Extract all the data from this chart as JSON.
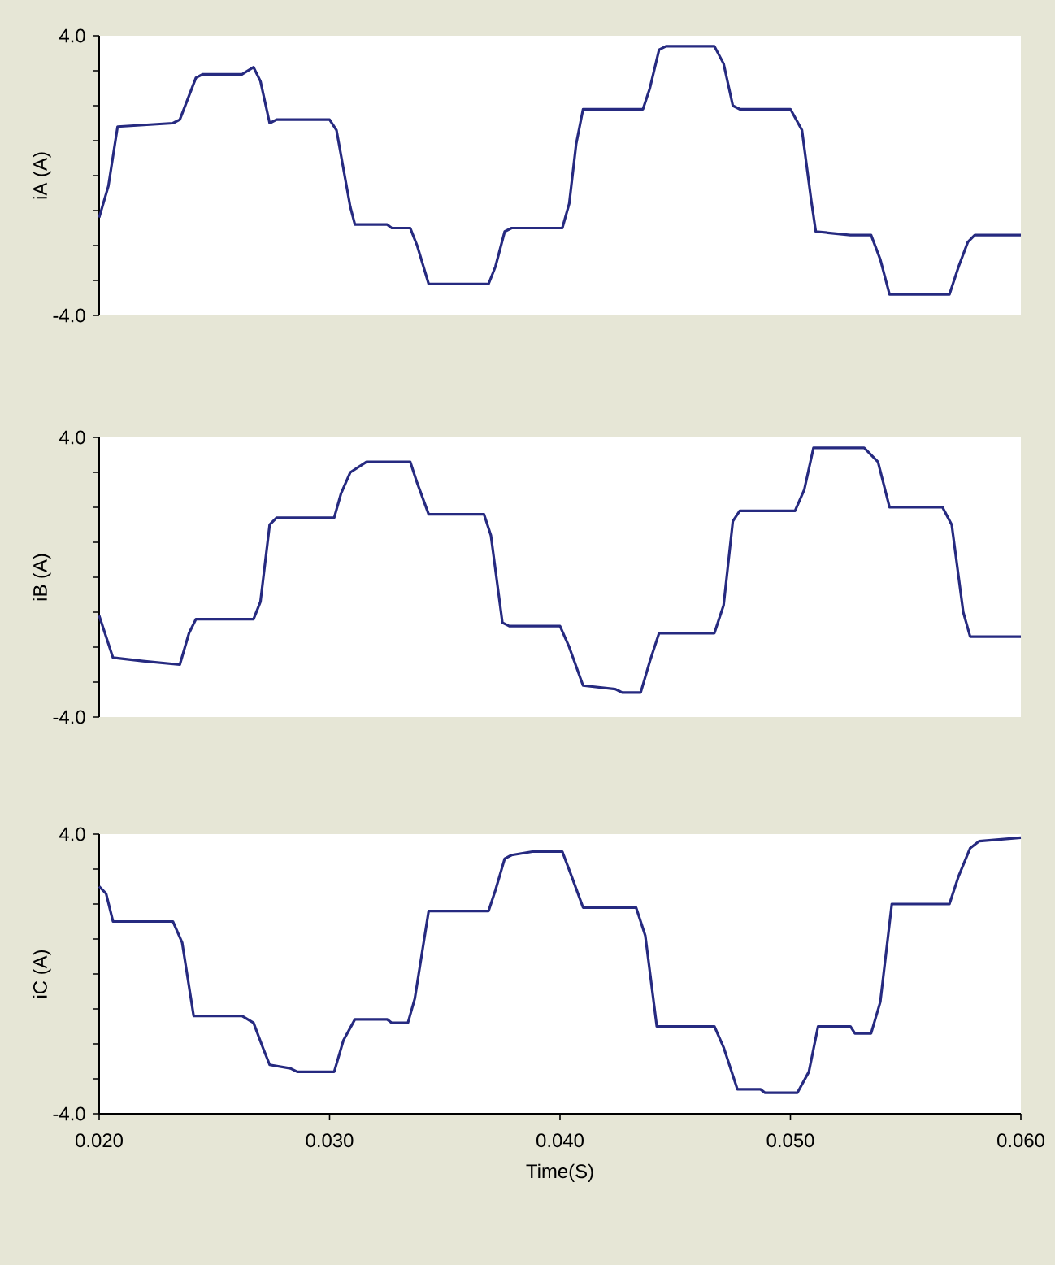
{
  "chart_data": [
    {
      "type": "line",
      "ylabel": "iA (A)",
      "color": "#262a80",
      "xlim": [
        0.02,
        0.06
      ],
      "ylim": [
        -4,
        4
      ],
      "tick_labels": "y",
      "yticks": [
        {
          "value": -4,
          "label": "-4.0"
        },
        {
          "value": -3,
          "label": null
        },
        {
          "value": -2,
          "label": null
        },
        {
          "value": -1,
          "label": null
        },
        {
          "value": 0,
          "label": null
        },
        {
          "value": 1,
          "label": null
        },
        {
          "value": 2,
          "label": null
        },
        {
          "value": 3,
          "label": null
        },
        {
          "value": 4,
          "label": "4.0"
        }
      ],
      "x": [
        0.02,
        0.0204,
        0.0208,
        0.0232,
        0.0235,
        0.0242,
        0.0245,
        0.0262,
        0.0267,
        0.027,
        0.0274,
        0.0277,
        0.03,
        0.0303,
        0.0309,
        0.0311,
        0.0325,
        0.0327,
        0.0335,
        0.0338,
        0.0343,
        0.0346,
        0.0369,
        0.0372,
        0.0376,
        0.0379,
        0.0401,
        0.0404,
        0.0407,
        0.041,
        0.0436,
        0.0439,
        0.0443,
        0.0446,
        0.0467,
        0.0471,
        0.0475,
        0.0478,
        0.05,
        0.0505,
        0.0509,
        0.0511,
        0.0526,
        0.0535,
        0.0539,
        0.0543,
        0.0569,
        0.0573,
        0.0577,
        0.058,
        0.06
      ],
      "values": [
        -1.2,
        -0.3,
        1.4,
        1.5,
        1.6,
        2.8,
        2.9,
        2.9,
        3.1,
        2.7,
        1.5,
        1.6,
        1.6,
        1.3,
        -0.9,
        -1.4,
        -1.4,
        -1.5,
        -1.5,
        -2.0,
        -3.1,
        -3.1,
        -3.1,
        -2.6,
        -1.6,
        -1.5,
        -1.5,
        -0.8,
        0.9,
        1.9,
        1.9,
        2.5,
        3.6,
        3.7,
        3.7,
        3.2,
        2.0,
        1.9,
        1.9,
        1.3,
        -0.7,
        -1.6,
        -1.7,
        -1.7,
        -2.4,
        -3.4,
        -3.4,
        -2.6,
        -1.9,
        -1.7,
        -1.7
      ]
    },
    {
      "type": "line",
      "ylabel": "iB (A)",
      "color": "#262a80",
      "xlim": [
        0.02,
        0.06
      ],
      "ylim": [
        -4,
        4
      ],
      "tick_labels": "y",
      "yticks": [
        {
          "value": -4,
          "label": "-4.0"
        },
        {
          "value": -3,
          "label": null
        },
        {
          "value": -2,
          "label": null
        },
        {
          "value": -1,
          "label": null
        },
        {
          "value": 0,
          "label": null
        },
        {
          "value": 1,
          "label": null
        },
        {
          "value": 2,
          "label": null
        },
        {
          "value": 3,
          "label": null
        },
        {
          "value": 4,
          "label": "4.0"
        }
      ],
      "x": [
        0.02,
        0.0206,
        0.0219,
        0.0235,
        0.0239,
        0.0242,
        0.0267,
        0.027,
        0.0274,
        0.0277,
        0.0302,
        0.0305,
        0.0309,
        0.0316,
        0.0335,
        0.0338,
        0.0343,
        0.0367,
        0.037,
        0.0375,
        0.0378,
        0.04,
        0.0404,
        0.041,
        0.0424,
        0.0427,
        0.0435,
        0.0439,
        0.0443,
        0.0467,
        0.0471,
        0.0475,
        0.0478,
        0.0502,
        0.0506,
        0.051,
        0.0532,
        0.0538,
        0.0543,
        0.0566,
        0.057,
        0.0575,
        0.0578,
        0.06
      ],
      "values": [
        -1.1,
        -2.3,
        -2.4,
        -2.5,
        -1.6,
        -1.2,
        -1.2,
        -0.7,
        1.5,
        1.7,
        1.7,
        2.4,
        3.0,
        3.3,
        3.3,
        2.7,
        1.8,
        1.8,
        1.2,
        -1.3,
        -1.4,
        -1.4,
        -2.0,
        -3.1,
        -3.2,
        -3.3,
        -3.3,
        -2.4,
        -1.6,
        -1.6,
        -0.8,
        1.6,
        1.9,
        1.9,
        2.5,
        3.7,
        3.7,
        3.3,
        2.0,
        2.0,
        1.5,
        -1.0,
        -1.7,
        -1.7
      ]
    },
    {
      "type": "line",
      "ylabel": "iC (A)",
      "xlabel": "Time(S)",
      "color": "#262a80",
      "xlim": [
        0.02,
        0.06
      ],
      "ylim": [
        -4,
        4
      ],
      "xticks": [
        {
          "value": 0.02,
          "label": "0.020"
        },
        {
          "value": 0.03,
          "label": "0.030"
        },
        {
          "value": 0.04,
          "label": "0.040"
        },
        {
          "value": 0.05,
          "label": "0.050"
        },
        {
          "value": 0.06,
          "label": "0.060"
        }
      ],
      "yticks": [
        {
          "value": -4,
          "label": "-4.0"
        },
        {
          "value": -3,
          "label": null
        },
        {
          "value": -2,
          "label": null
        },
        {
          "value": -1,
          "label": null
        },
        {
          "value": 0,
          "label": null
        },
        {
          "value": 1,
          "label": null
        },
        {
          "value": 2,
          "label": null
        },
        {
          "value": 3,
          "label": null
        },
        {
          "value": 4,
          "label": "4.0"
        }
      ],
      "x": [
        0.02,
        0.0203,
        0.0206,
        0.0232,
        0.0236,
        0.0241,
        0.0243,
        0.0262,
        0.0267,
        0.0271,
        0.0274,
        0.0283,
        0.0286,
        0.0302,
        0.0306,
        0.0311,
        0.0325,
        0.0327,
        0.0334,
        0.0337,
        0.0343,
        0.0369,
        0.0372,
        0.0376,
        0.0379,
        0.0388,
        0.0401,
        0.0405,
        0.041,
        0.0433,
        0.0437,
        0.0442,
        0.0467,
        0.0471,
        0.0477,
        0.0487,
        0.0489,
        0.0503,
        0.0508,
        0.0512,
        0.0526,
        0.0528,
        0.0535,
        0.0539,
        0.0544,
        0.0569,
        0.0573,
        0.0578,
        0.0582,
        0.06
      ],
      "values": [
        2.5,
        2.3,
        1.5,
        1.5,
        0.9,
        -1.2,
        -1.2,
        -1.2,
        -1.4,
        -2.1,
        -2.6,
        -2.7,
        -2.8,
        -2.8,
        -1.9,
        -1.3,
        -1.3,
        -1.4,
        -1.4,
        -0.7,
        1.8,
        1.8,
        2.4,
        3.3,
        3.4,
        3.5,
        3.5,
        2.8,
        1.9,
        1.9,
        1.1,
        -1.5,
        -1.5,
        -2.1,
        -3.3,
        -3.3,
        -3.4,
        -3.4,
        -2.8,
        -1.5,
        -1.5,
        -1.7,
        -1.7,
        -0.8,
        2.0,
        2.0,
        2.8,
        3.6,
        3.8,
        3.9
      ]
    }
  ]
}
